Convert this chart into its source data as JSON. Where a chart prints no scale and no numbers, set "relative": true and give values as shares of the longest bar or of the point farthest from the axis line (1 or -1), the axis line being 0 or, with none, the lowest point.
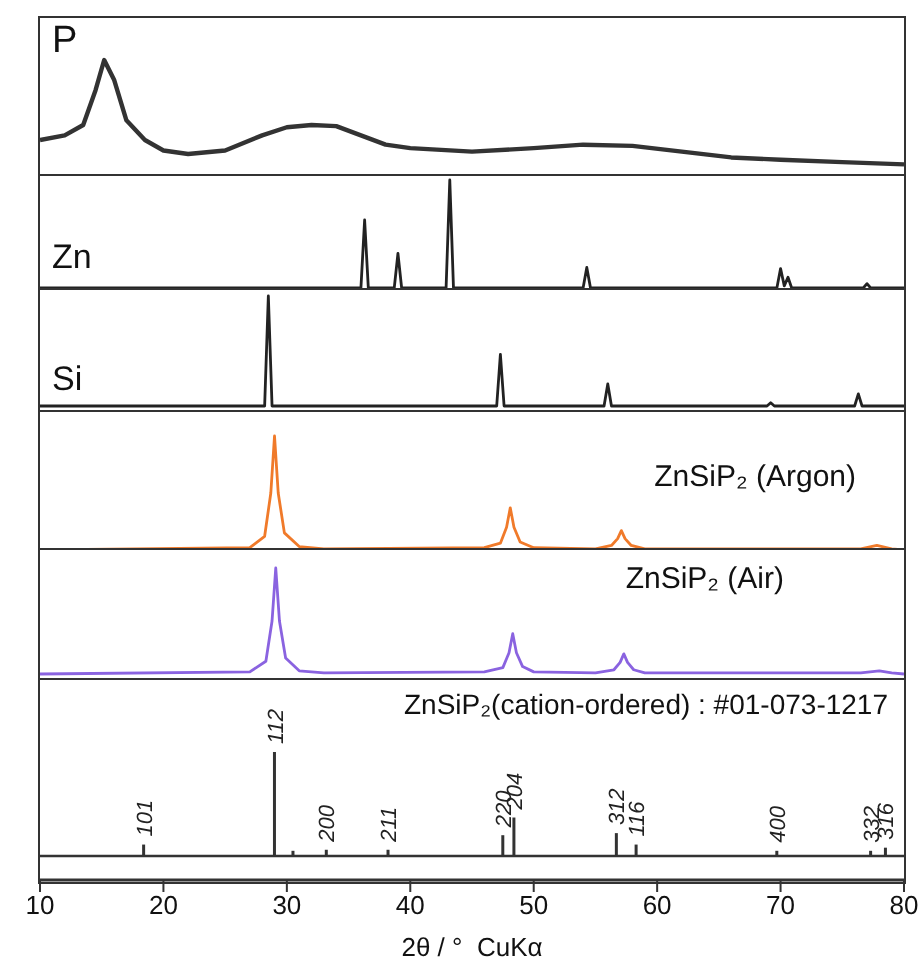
{
  "chart_data": [
    {
      "type": "line",
      "relative": true,
      "xlim": [
        10,
        80
      ],
      "tick_labels": false,
      "series": [
        {
          "name": "P",
          "color": "#333333",
          "x": [
            10,
            12,
            13.5,
            14.5,
            15.2,
            16,
            17,
            18.5,
            20,
            22,
            25,
            28,
            30,
            32,
            34,
            36,
            38,
            40,
            45,
            50,
            54,
            58,
            62,
            66,
            70,
            75,
            80
          ],
          "values": [
            0.31,
            0.35,
            0.44,
            0.74,
            1,
            0.83,
            0.48,
            0.31,
            0.22,
            0.19,
            0.22,
            0.35,
            0.42,
            0.44,
            0.43,
            0.35,
            0.27,
            0.24,
            0.21,
            0.24,
            0.27,
            0.26,
            0.21,
            0.16,
            0.14,
            0.12,
            0.1
          ]
        }
      ]
    },
    {
      "type": "line",
      "relative": true,
      "xlim": [
        10,
        80
      ],
      "tick_labels": false,
      "series": [
        {
          "name": "Zn",
          "color": "#222222",
          "x": [
            10,
            36.0,
            36.3,
            36.6,
            38.7,
            39.0,
            39.3,
            42.9,
            43.2,
            43.5,
            54.0,
            54.3,
            54.6,
            69.7,
            70.0,
            70.3,
            70.6,
            70.9,
            76.7,
            77.0,
            77.3,
            80
          ],
          "values": [
            0,
            0,
            0.63,
            0,
            0,
            0.32,
            0,
            0,
            1,
            0,
            0,
            0.19,
            0,
            0,
            0.18,
            0.02,
            0.1,
            0,
            0,
            0.04,
            0,
            0
          ]
        }
      ]
    },
    {
      "type": "line",
      "relative": true,
      "xlim": [
        10,
        80
      ],
      "tick_labels": false,
      "series": [
        {
          "name": "Si",
          "color": "#222222",
          "x": [
            10,
            28.2,
            28.5,
            28.8,
            47.0,
            47.3,
            47.6,
            55.7,
            56.0,
            56.3,
            68.9,
            69.2,
            69.5,
            76.0,
            76.3,
            76.6,
            80
          ],
          "values": [
            0,
            0,
            1,
            0,
            0,
            0.47,
            0,
            0,
            0.2,
            0,
            0,
            0.03,
            0,
            0,
            0.11,
            0,
            0
          ]
        }
      ]
    },
    {
      "type": "line",
      "relative": true,
      "xlim": [
        10,
        80
      ],
      "tick_labels": false,
      "series": [
        {
          "name": "ZnSiP₂ (Argon)",
          "color": "#f07a2a",
          "x": [
            10,
            27,
            28.2,
            28.7,
            29.0,
            29.3,
            29.8,
            31,
            33,
            46,
            47.3,
            47.8,
            48.1,
            48.4,
            48.9,
            50,
            55,
            56.3,
            56.8,
            57.1,
            57.4,
            57.9,
            59,
            70,
            76.5,
            77.8,
            79,
            80
          ],
          "values": [
            0,
            0.02,
            0.12,
            0.5,
            1,
            0.5,
            0.15,
            0.03,
            0.01,
            0.02,
            0.06,
            0.2,
            0.37,
            0.2,
            0.07,
            0.02,
            0.01,
            0.04,
            0.1,
            0.17,
            0.1,
            0.04,
            0.01,
            0.01,
            0.01,
            0.04,
            0.01,
            0
          ]
        }
      ]
    },
    {
      "type": "line",
      "relative": true,
      "xlim": [
        10,
        80
      ],
      "tick_labels": false,
      "series": [
        {
          "name": "ZnSiP₂ (Air)",
          "color": "#8a63e0",
          "x": [
            10,
            27,
            28.3,
            28.8,
            29.1,
            29.4,
            29.9,
            31,
            33,
            46,
            47.5,
            48.0,
            48.3,
            48.6,
            49.1,
            50,
            55,
            56.5,
            57.0,
            57.3,
            57.6,
            58.1,
            59,
            70,
            76.5,
            78,
            79,
            80
          ],
          "values": [
            0,
            0.02,
            0.12,
            0.5,
            1,
            0.5,
            0.15,
            0.03,
            0.01,
            0.02,
            0.06,
            0.2,
            0.38,
            0.2,
            0.07,
            0.02,
            0.01,
            0.04,
            0.11,
            0.19,
            0.11,
            0.04,
            0.01,
            0.01,
            0.01,
            0.03,
            0.01,
            0
          ]
        }
      ]
    },
    {
      "type": "bar",
      "relative": true,
      "title": "ZnSiP₂(cation-ordered) : #01-073-1217",
      "xlabel": "2θ / °  CuKα",
      "xlim": [
        10,
        80
      ],
      "xticks": [
        10,
        20,
        30,
        40,
        50,
        60,
        70,
        80
      ],
      "tick_labels": "x",
      "series": [
        {
          "color": "#333333",
          "x": [
            18.4,
            29.0,
            30.5,
            33.2,
            38.2,
            47.5,
            48.4,
            56.7,
            58.3,
            69.7,
            77.3,
            78.5
          ],
          "values": [
            0.11,
            1,
            0.05,
            0.06,
            0.06,
            0.2,
            0.37,
            0.22,
            0.11,
            0.05,
            0.05,
            0.08
          ]
        }
      ],
      "annotations": [
        {
          "text": "101",
          "x": 18.4,
          "y": 0.11
        },
        {
          "text": "112",
          "x": 29.0,
          "y": 1
        },
        {
          "text": "200",
          "x": 33.2,
          "y": 0.06
        },
        {
          "text": "211",
          "x": 38.2,
          "y": 0.06
        },
        {
          "text": "220",
          "x": 47.5,
          "y": 0.2
        },
        {
          "text": "204",
          "x": 48.4,
          "y": 0.37
        },
        {
          "text": "312",
          "x": 56.7,
          "y": 0.22
        },
        {
          "text": "116",
          "x": 58.3,
          "y": 0.11
        },
        {
          "text": "400",
          "x": 69.7,
          "y": 0.05
        },
        {
          "text": "332",
          "x": 77.3,
          "y": 0.05
        },
        {
          "text": "316",
          "x": 78.5,
          "y": 0.08
        }
      ]
    }
  ]
}
